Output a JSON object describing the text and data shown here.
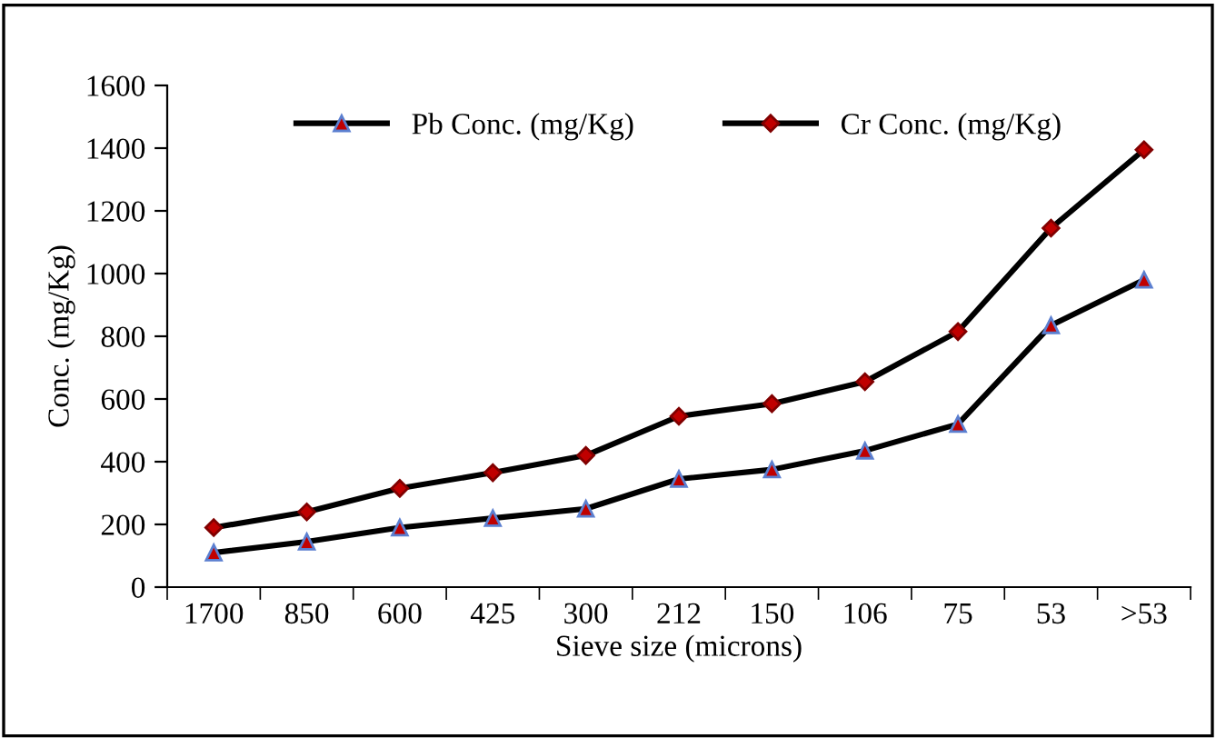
{
  "chart_data": {
    "type": "line",
    "xlabel": "Sieve size (microns)",
    "ylabel": "Conc. (mg/Kg)",
    "categories": [
      "1700",
      "850",
      "600",
      "425",
      "300",
      "212",
      "150",
      "106",
      "75",
      "53",
      ">53"
    ],
    "series": [
      {
        "name": "Pb Conc. (mg/Kg)",
        "color": "#000000",
        "marker": "triangle",
        "values": [
          110,
          145,
          190,
          220,
          250,
          345,
          375,
          435,
          520,
          835,
          980
        ]
      },
      {
        "name": "Cr Conc. (mg/Kg)",
        "color": "#000000",
        "marker": "diamond",
        "values": [
          190,
          240,
          315,
          365,
          420,
          545,
          585,
          655,
          815,
          1145,
          1395
        ]
      }
    ],
    "ylim": [
      0,
      1600
    ],
    "yticks": [
      0,
      200,
      400,
      600,
      800,
      1000,
      1200,
      1400,
      1600
    ],
    "grid": false,
    "legend": "top",
    "line_style": "solid"
  }
}
